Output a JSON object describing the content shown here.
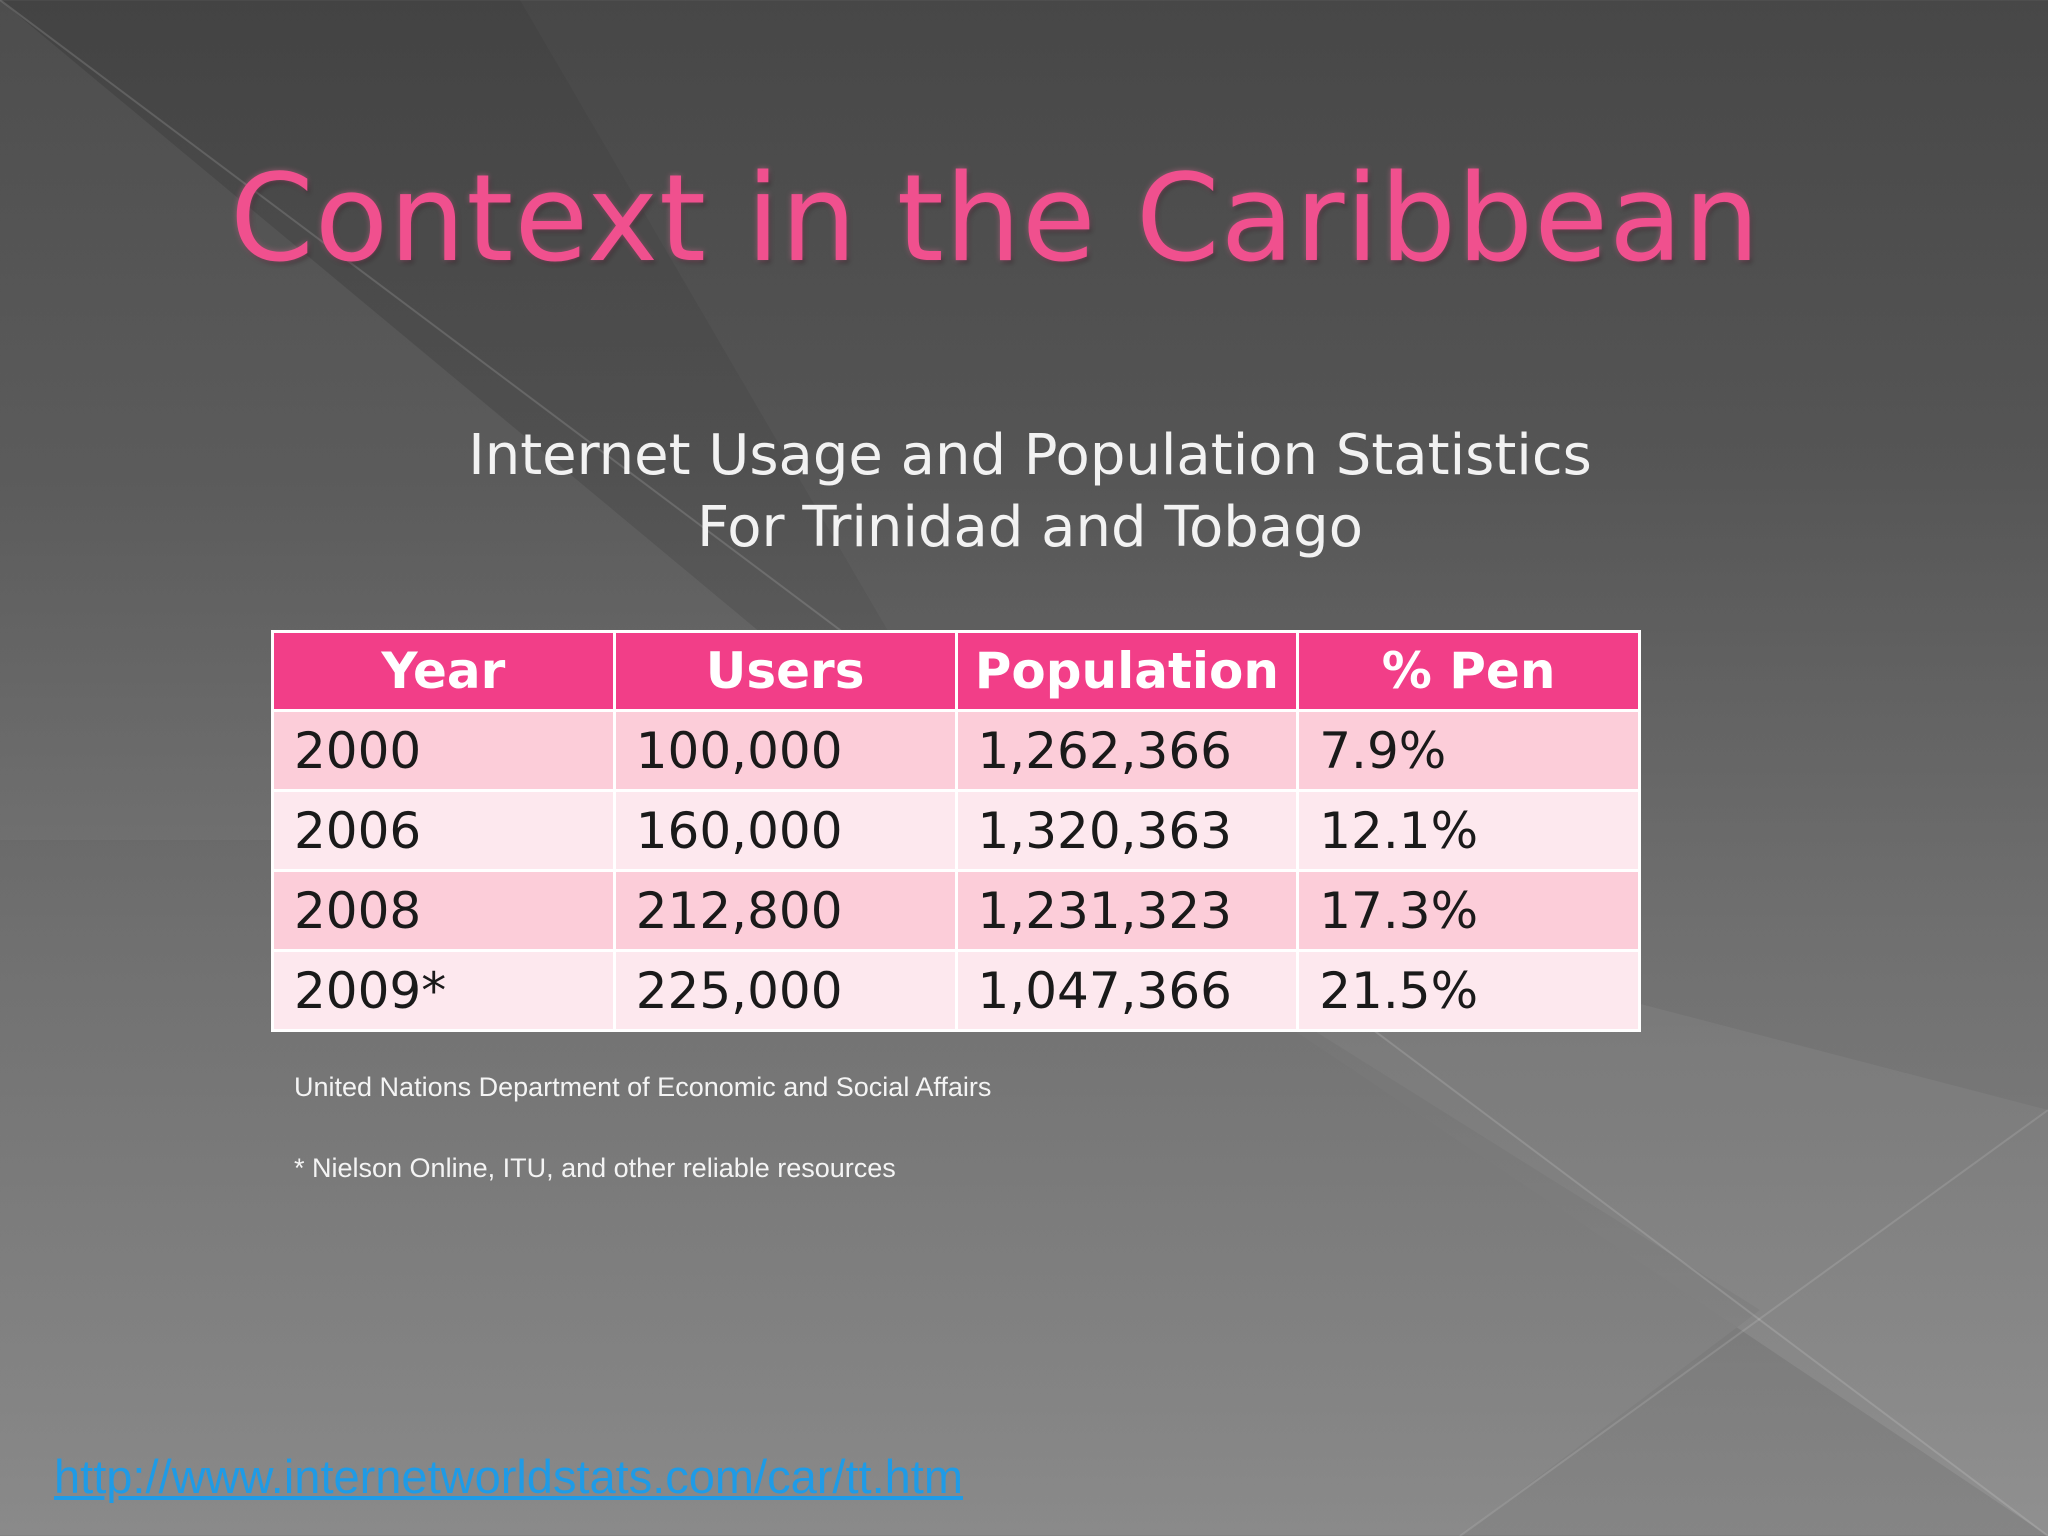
{
  "slide": {
    "title": "Context in the Caribbean",
    "subtitle_line1": "Internet Usage and Population Statistics",
    "subtitle_line2": "For Trinidad and Tobago"
  },
  "table": {
    "headers": [
      "Year",
      "Users",
      "Population",
      "% Pen"
    ],
    "rows": [
      [
        "2000",
        "100,000",
        "1,262,366",
        "7.9%"
      ],
      [
        "2006",
        "160,000",
        "1,320,363",
        "12.1%"
      ],
      [
        "2008",
        "212,800",
        "1,231,323",
        "17.3%"
      ],
      [
        "2009*",
        "225,000",
        "1,047,366",
        "21.5%"
      ]
    ]
  },
  "sources": {
    "un": "United Nations Department of Economic and Social Affairs",
    "nielson": "* Nielson Online, ITU, and other reliable resources"
  },
  "link": {
    "url": "http://www.internetworldstats.com/car/tt.htm"
  },
  "colors": {
    "title": "#f0508e",
    "header_bg": "#f23e88",
    "row_odd": "#fccdd9",
    "row_even": "#fde8ee",
    "link": "#1f9be6"
  }
}
